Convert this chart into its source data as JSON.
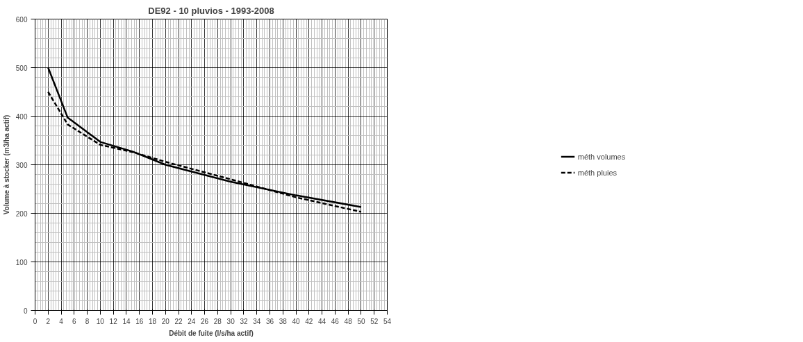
{
  "chart_data": {
    "type": "line",
    "title": "DE92 - 10 pluvios - 1993-2008",
    "xlabel": "Débit de fuite (l/s/ha actif)",
    "ylabel": "Volume à stocker (m3/ha actif)",
    "x": [
      2,
      5,
      10,
      15,
      20,
      30,
      40,
      50
    ],
    "series": [
      {
        "name": "méth volumes",
        "color": "#000000",
        "line_style": "solid",
        "values": [
          500,
          397,
          347,
          327,
          300,
          265,
          237,
          213
        ]
      },
      {
        "name": "méth pluies",
        "color": "#000000",
        "line_style": "dashed",
        "values": [
          450,
          383,
          341,
          326,
          306,
          270,
          233,
          203
        ]
      }
    ],
    "xlim": [
      0,
      54
    ],
    "xticks": [
      0,
      2,
      4,
      6,
      8,
      10,
      12,
      14,
      16,
      18,
      20,
      22,
      24,
      26,
      28,
      30,
      32,
      34,
      36,
      38,
      40,
      42,
      44,
      46,
      48,
      50,
      52,
      54
    ],
    "ylim": [
      0,
      600
    ],
    "yticks": [
      0,
      100,
      200,
      300,
      400,
      500,
      600
    ],
    "grid": true,
    "legend": "right",
    "marker": "none"
  }
}
